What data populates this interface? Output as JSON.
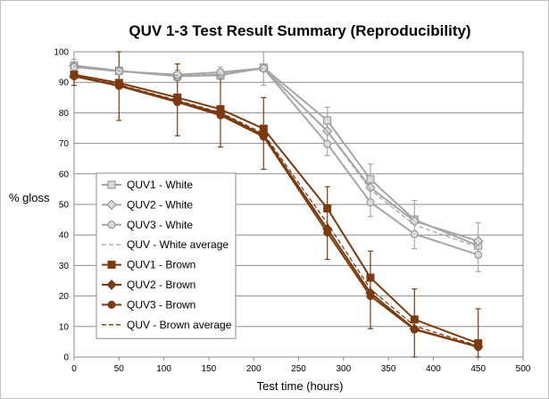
{
  "chart_data": {
    "type": "line",
    "title": "QUV 1-3 Test Result Summary (Reproducibility)",
    "xlabel": "Test time (hours)",
    "ylabel": "% gloss",
    "xlim": [
      0,
      500
    ],
    "ylim": [
      0,
      100
    ],
    "xticks": [
      0,
      50,
      100,
      150,
      200,
      250,
      300,
      350,
      400,
      450,
      500
    ],
    "yticks": [
      0,
      10,
      20,
      30,
      40,
      50,
      60,
      70,
      80,
      90,
      100
    ],
    "grid": "horizontal",
    "legend_position": "left-center",
    "x": [
      0,
      50,
      115,
      163,
      211,
      282,
      330,
      379,
      450
    ],
    "series": [
      {
        "name": "QUV1 - White",
        "color": "#a6a6a6",
        "marker": "square",
        "dashed": false,
        "values": [
          95.5,
          93.8,
          92.0,
          92.3,
          94.8,
          77.5,
          58.2,
          45.0,
          36.5
        ]
      },
      {
        "name": "QUV2 - White",
        "color": "#a6a6a6",
        "marker": "diamond",
        "dashed": false,
        "values": [
          95.3,
          93.7,
          92.0,
          92.5,
          94.6,
          74.0,
          55.5,
          44.5,
          38.0
        ]
      },
      {
        "name": "QUV3 - White",
        "color": "#a6a6a6",
        "marker": "circle",
        "dashed": false,
        "values": [
          95.0,
          93.6,
          92.5,
          93.3,
          94.6,
          69.8,
          50.7,
          40.3,
          33.5
        ]
      },
      {
        "name": "QUV - White average",
        "color": "#a6a6a6",
        "marker": "none",
        "dashed": true,
        "values": [
          95.3,
          93.7,
          92.2,
          92.7,
          94.7,
          73.8,
          54.8,
          43.3,
          36.0
        ]
      },
      {
        "name": "QUV1 - Brown",
        "color": "#7b3a0f",
        "marker": "square",
        "dashed": false,
        "values": [
          92.5,
          89.8,
          85.0,
          81.2,
          74.8,
          48.7,
          26.0,
          12.3,
          4.5
        ]
      },
      {
        "name": "QUV2 - Brown",
        "color": "#7b3a0f",
        "marker": "diamond",
        "dashed": false,
        "values": [
          92.0,
          89.0,
          83.8,
          79.8,
          72.6,
          42.0,
          21.0,
          9.2,
          3.4
        ]
      },
      {
        "name": "QUV3 - Brown",
        "color": "#7b3a0f",
        "marker": "circle",
        "dashed": false,
        "values": [
          92.0,
          88.8,
          83.5,
          79.2,
          72.2,
          40.8,
          20.0,
          9.0,
          3.3
        ]
      },
      {
        "name": "QUV - Brown average",
        "color": "#7b3a0f",
        "marker": "none",
        "dashed": true,
        "values": [
          92.2,
          89.2,
          84.1,
          80.1,
          73.2,
          43.8,
          22.3,
          10.2,
          3.7
        ]
      }
    ],
    "error_bars": [
      {
        "x": 0,
        "color": "#a6a6a6",
        "low": 93.0,
        "high": 97.5
      },
      {
        "x": 50,
        "color": "#a6a6a6",
        "low": 92.5,
        "high": 95.0
      },
      {
        "x": 115,
        "color": "#a6a6a6",
        "low": 90.5,
        "high": 94.0
      },
      {
        "x": 163,
        "color": "#a6a6a6",
        "low": 91.0,
        "high": 95.0
      },
      {
        "x": 211,
        "color": "#a6a6a6",
        "low": 89.0,
        "high": 100.0
      },
      {
        "x": 282,
        "color": "#a6a6a6",
        "low": 66.0,
        "high": 81.8
      },
      {
        "x": 330,
        "color": "#a6a6a6",
        "low": 46.0,
        "high": 63.2
      },
      {
        "x": 379,
        "color": "#a6a6a6",
        "low": 35.5,
        "high": 51.3
      },
      {
        "x": 450,
        "color": "#a6a6a6",
        "low": 28.0,
        "high": 44.0
      },
      {
        "x": 0,
        "color": "#7b3a0f",
        "low": 89.0,
        "high": 96.0
      },
      {
        "x": 50,
        "color": "#7b3a0f",
        "low": 77.5,
        "high": 100.0
      },
      {
        "x": 115,
        "color": "#7b3a0f",
        "low": 72.5,
        "high": 96.0
      },
      {
        "x": 163,
        "color": "#7b3a0f",
        "low": 68.8,
        "high": 92.0
      },
      {
        "x": 211,
        "color": "#7b3a0f",
        "low": 61.5,
        "high": 85.0
      },
      {
        "x": 282,
        "color": "#7b3a0f",
        "low": 32.0,
        "high": 55.8
      },
      {
        "x": 330,
        "color": "#7b3a0f",
        "low": 9.3,
        "high": 34.7
      },
      {
        "x": 379,
        "color": "#7b3a0f",
        "low": 0.0,
        "high": 22.3
      },
      {
        "x": 450,
        "color": "#7b3a0f",
        "low": 0.0,
        "high": 15.8
      }
    ]
  }
}
